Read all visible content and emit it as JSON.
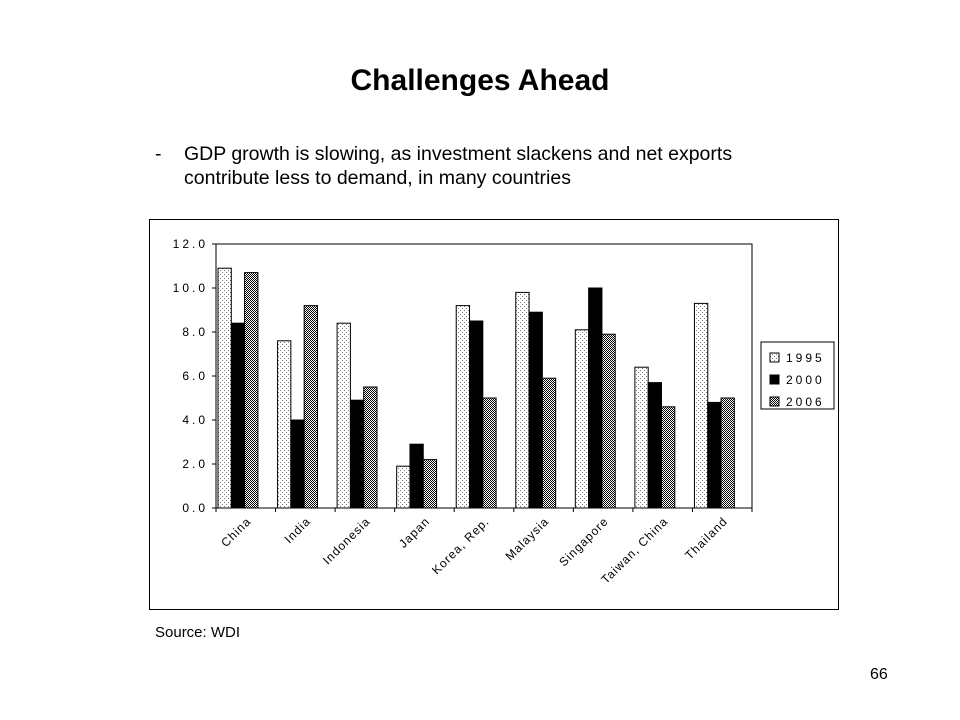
{
  "slide": {
    "title": "Challenges Ahead",
    "bullet_marker": "-",
    "bullet_text": "GDP growth is slowing, as investment slackens and net exports contribute less to demand, in many countries",
    "source": "Source: WDI",
    "page_number": "66"
  },
  "chart_data": {
    "type": "bar",
    "title": "",
    "xlabel": "",
    "ylabel": "",
    "categories": [
      "China",
      "India",
      "Indonesia",
      "Japan",
      "Korea, Rep.",
      "Malaysia",
      "Singapore",
      "Taiwan, China",
      "Thailand"
    ],
    "series": [
      {
        "name": "1995",
        "values": [
          10.9,
          7.6,
          8.4,
          1.9,
          9.2,
          9.8,
          8.1,
          6.4,
          9.3
        ]
      },
      {
        "name": "2000",
        "values": [
          8.4,
          4.0,
          4.9,
          2.9,
          8.5,
          8.9,
          10.0,
          5.7,
          4.8
        ]
      },
      {
        "name": "2006",
        "values": [
          10.7,
          9.2,
          5.5,
          2.2,
          5.0,
          5.9,
          7.9,
          4.6,
          5.0
        ]
      }
    ],
    "yticks": [
      "0.0",
      "2.0",
      "4.0",
      "6.0",
      "8.0",
      "10.0",
      "12.0"
    ],
    "ylim": [
      0,
      12
    ],
    "grid": false,
    "legend_position": "right",
    "series_fills": [
      "dotted-light",
      "black",
      "checkered-dark"
    ]
  }
}
